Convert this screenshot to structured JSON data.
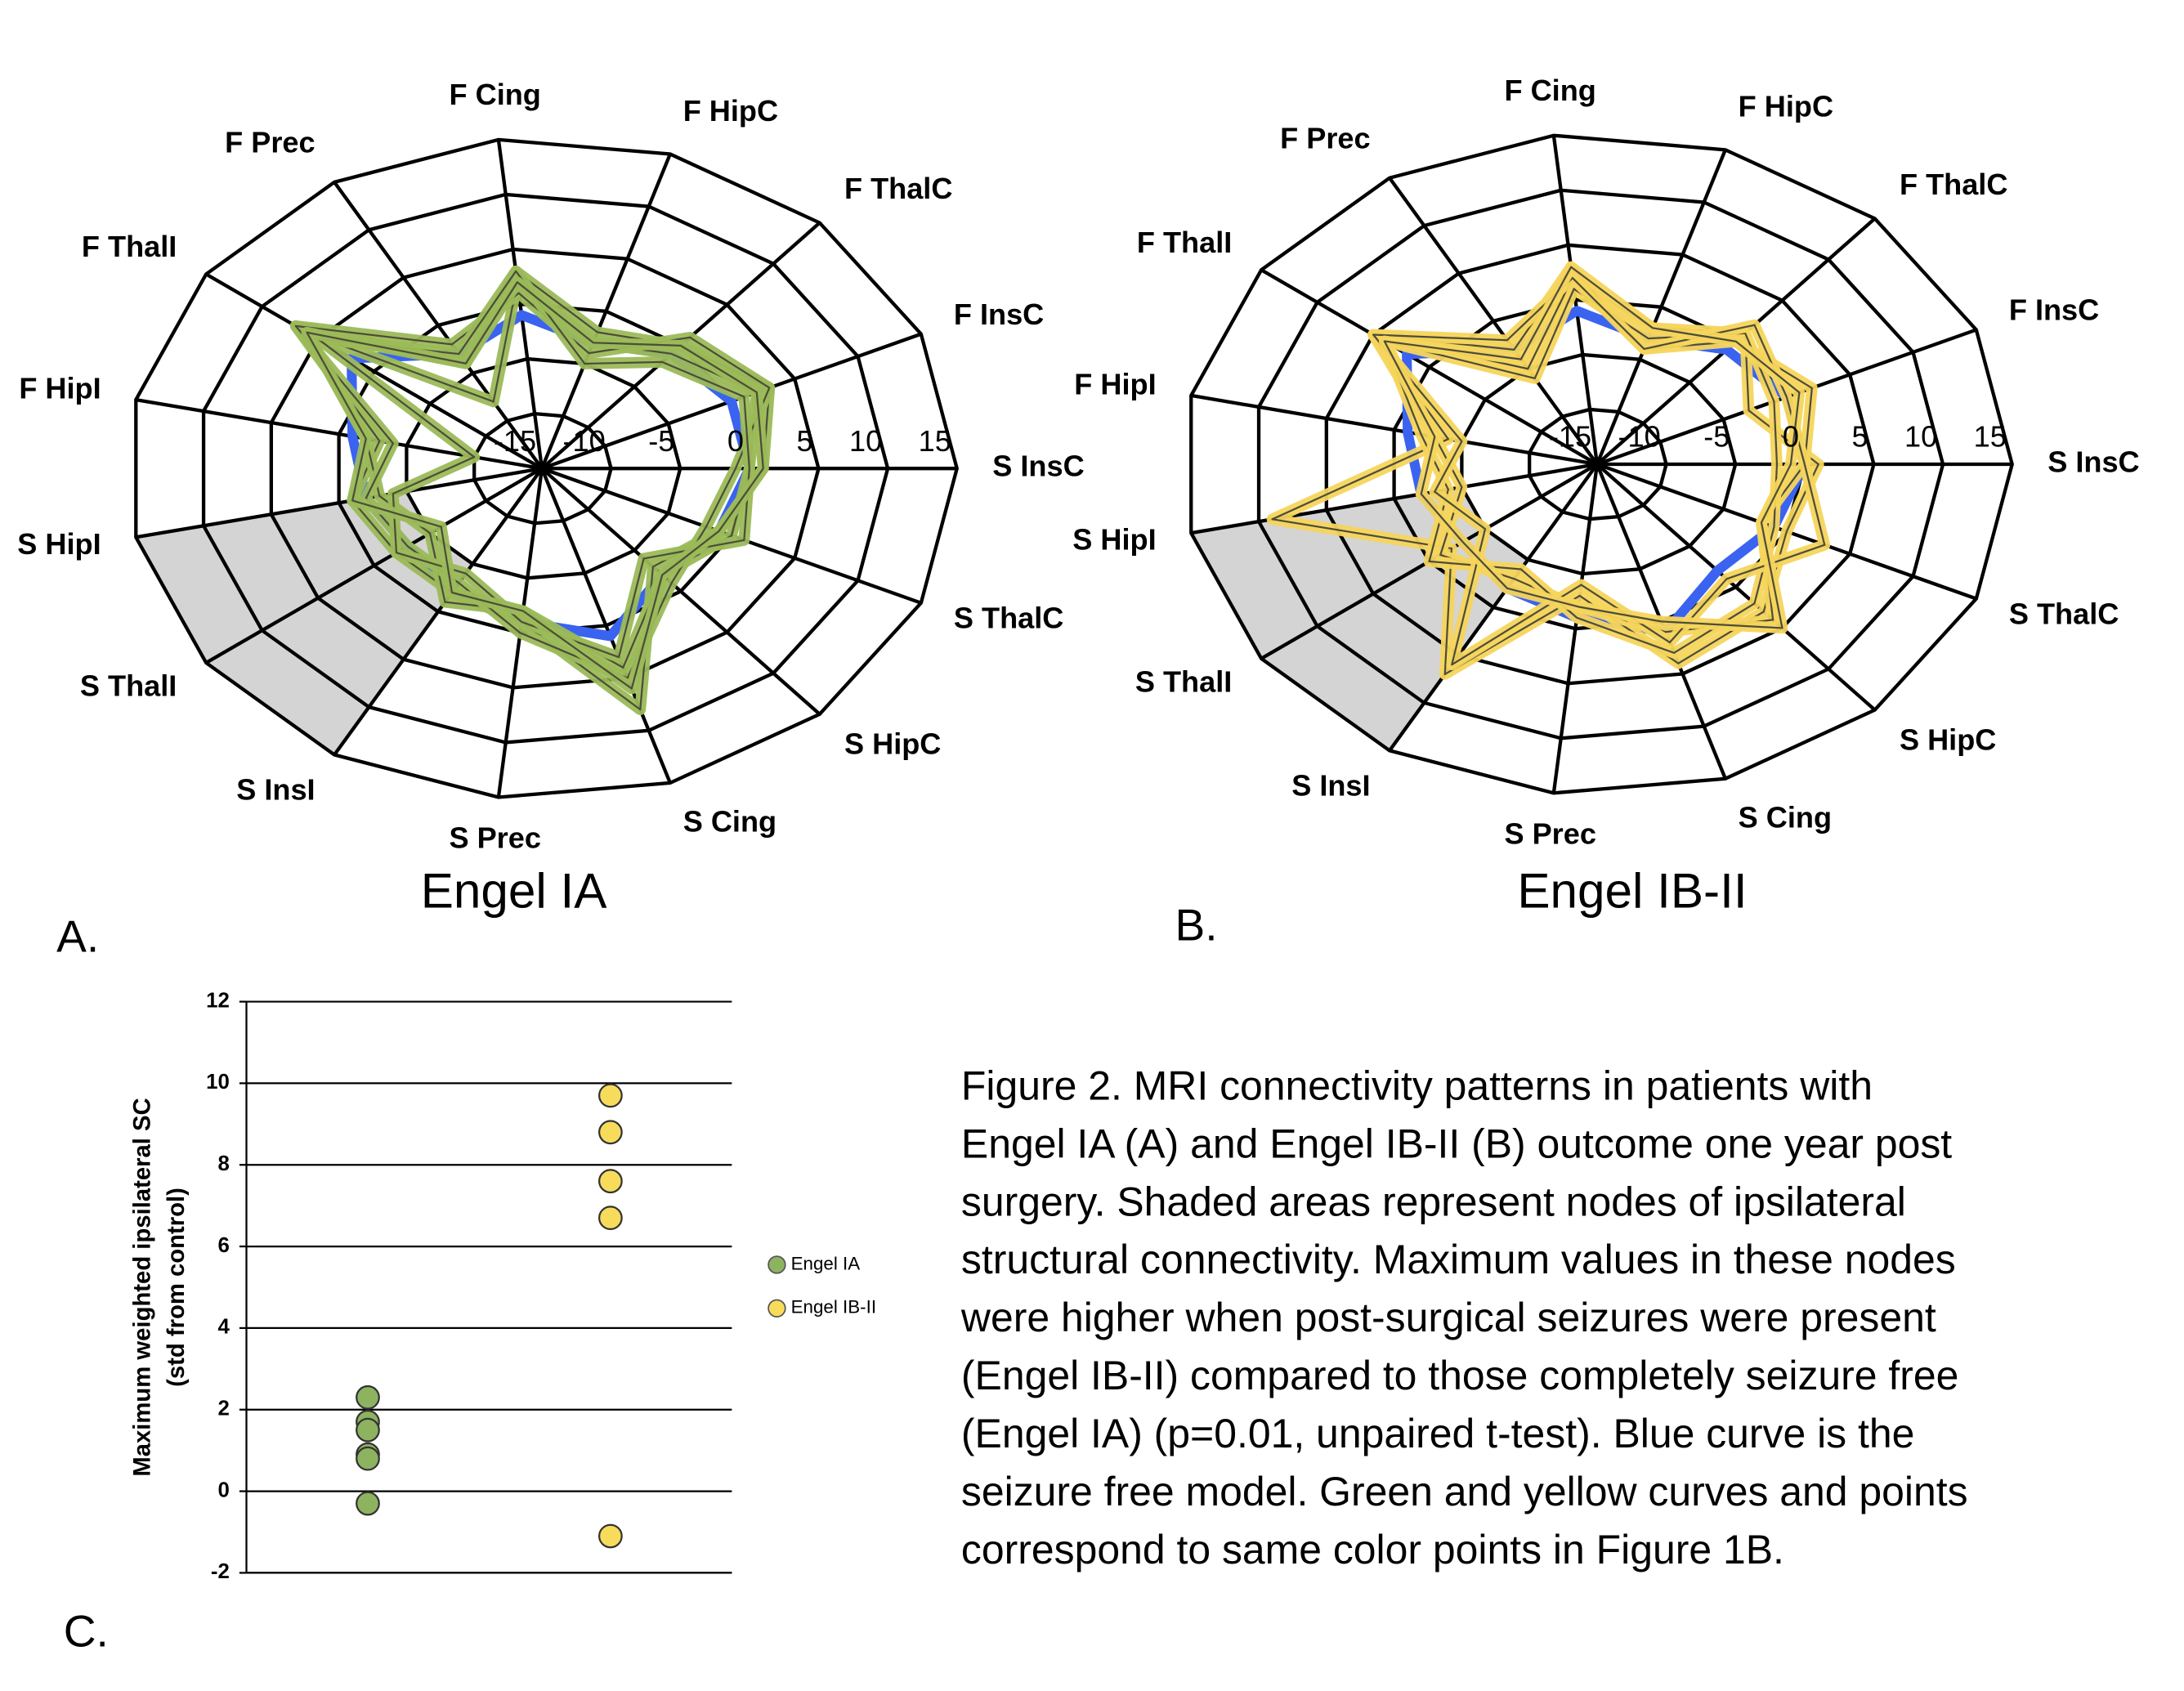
{
  "chart_data": [
    {
      "type": "radar",
      "panel": "A.",
      "title": "Engel IA",
      "categories": [
        "S InsC",
        "F InsC",
        "F ThalC",
        "F HipC",
        "F Cing",
        "F Prec",
        "F ThalI",
        "F HipI",
        "S HipI",
        "S ThalI",
        "S InsI",
        "S Prec",
        "S Cing",
        "S HipC",
        "S ThalC"
      ],
      "rlim": [
        -15,
        15
      ],
      "rticks": [
        -15,
        -10,
        -5,
        0,
        5,
        10,
        15
      ],
      "series": [
        {
          "color": "#3a63f0",
          "values": [
            0,
            0,
            -1,
            -3,
            -1,
            -3,
            2,
            -1,
            -2,
            -3,
            -2,
            -1,
            1,
            -2,
            -1
          ]
        },
        {
          "color": "#9bbb59",
          "values": [
            1,
            3,
            0,
            -2,
            3,
            -4,
            7,
            -3,
            -1,
            -2,
            -2,
            -1,
            8,
            -3,
            -1
          ]
        },
        {
          "color": "#9bbb59",
          "values": [
            0,
            2,
            -1,
            -3,
            2,
            -8,
            6,
            -2,
            -3,
            -5,
            -1,
            -2,
            4,
            -2,
            0
          ]
        },
        {
          "color": "#9bbb59",
          "values": [
            -1,
            3,
            1,
            -4,
            1,
            -2,
            7,
            -4,
            -2,
            -3,
            -3,
            0,
            5,
            -1,
            -2
          ]
        },
        {
          "color": "#9bbb59",
          "values": [
            0,
            1,
            -2,
            -5,
            3,
            -3,
            5,
            -10,
            -4,
            -2,
            -4,
            -1,
            3,
            -4,
            1
          ]
        },
        {
          "color": "#9bbb59",
          "values": [
            1,
            2,
            0,
            -3,
            2,
            -4,
            6,
            -2,
            -1,
            -6,
            -2,
            -2,
            6,
            -2,
            -1
          ]
        }
      ]
    },
    {
      "type": "radar",
      "panel": "B.",
      "title": "Engel IB-II",
      "categories": [
        "S InsC",
        "F InsC",
        "F ThalC",
        "F HipC",
        "F Cing",
        "F Prec",
        "F ThalI",
        "F HipI",
        "S HipI",
        "S ThalI",
        "S InsI",
        "S Prec",
        "S Cing",
        "S HipC",
        "S ThalC"
      ],
      "rlim": [
        -15,
        15
      ],
      "rticks": [
        -15,
        -10,
        -5,
        0,
        5,
        10,
        15
      ],
      "series": [
        {
          "color": "#3a63f0",
          "values": [
            0,
            0,
            -1,
            -3,
            -1,
            -3,
            2,
            -1,
            -2,
            -3,
            -2,
            -1,
            1,
            -2,
            -1
          ]
        },
        {
          "color": "#f6d55c",
          "values": [
            1,
            -3,
            1,
            -2,
            2,
            -5,
            5,
            -4,
            9,
            -2,
            7,
            -3,
            4,
            3,
            0
          ]
        },
        {
          "color": "#f6d55c",
          "values": [
            0,
            2,
            0,
            -4,
            3,
            -3,
            5,
            -3,
            -5,
            -1,
            -3,
            -2,
            1,
            4,
            -2
          ]
        },
        {
          "color": "#f6d55c",
          "values": [
            -2,
            -1,
            1,
            -3,
            1,
            -6,
            4,
            -2,
            -4,
            0,
            -4,
            -1,
            3,
            2,
            -1
          ]
        },
        {
          "color": "#f6d55c",
          "values": [
            0,
            0,
            2,
            -4,
            2,
            -2,
            5,
            -5,
            -3,
            -5,
            6,
            -4,
            2,
            -1,
            3
          ]
        },
        {
          "color": "#f6d55c",
          "values": [
            -1,
            1,
            0,
            -2,
            3,
            -4,
            4,
            -3,
            -2,
            -3,
            -2,
            -2,
            0,
            5,
            -2
          ]
        }
      ]
    },
    {
      "type": "scatter",
      "panel": "C.",
      "y_label": [
        "Maximum weighted ipsilateral SC",
        "(std from control)"
      ],
      "xlim": [
        0,
        4
      ],
      "ylim": [
        -2,
        12
      ],
      "yticks": [
        -2,
        0,
        2,
        4,
        6,
        8,
        10,
        12
      ],
      "grid": true,
      "series": [
        {
          "name": "Engel IA",
          "color": "#8db360",
          "x": [
            1,
            1,
            1,
            1,
            1,
            1
          ],
          "values": [
            2.3,
            1.7,
            1.5,
            0.9,
            0.8,
            -0.3
          ]
        },
        {
          "name": "Engel IB-II",
          "color": "#f7dc5c",
          "x": [
            3,
            3,
            3,
            3,
            3
          ],
          "values": [
            9.7,
            8.8,
            7.6,
            6.7,
            -1.1
          ]
        }
      ]
    }
  ],
  "caption": [
    "Figure 2. MRI connectivity patterns in patients with",
    "Engel IA (A) and Engel IB-II (B) outcome one year post",
    "surgery. Shaded areas represent nodes of ipsilateral",
    "structural connectivity. Maximum values in these nodes",
    "were higher when post-surgical seizures were present",
    "(Engel IB-II) compared to those completely seizure free",
    "(Engel IA) (p=0.01, unpaired t-test). Blue curve is the",
    "seizure free model. Green and yellow curves and points",
    "correspond to same color points in Figure 1B."
  ]
}
